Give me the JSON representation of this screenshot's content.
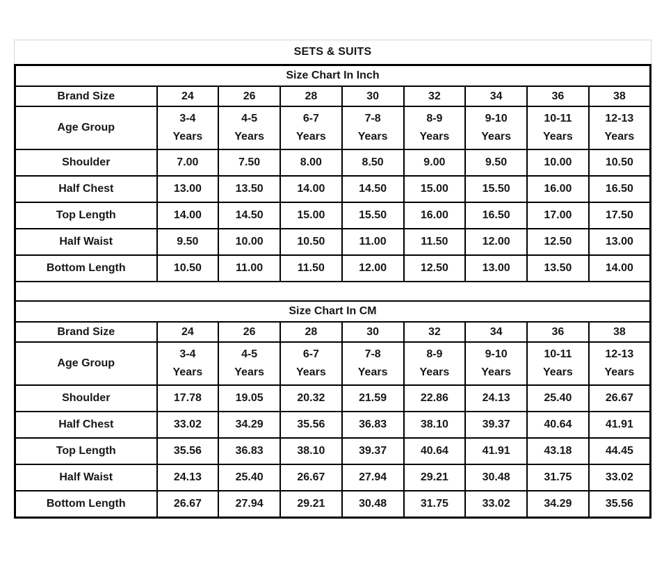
{
  "page": {
    "title": "SETS & SUITS",
    "background": "#ffffff",
    "text_color": "#171717",
    "table_border_color": "#000000",
    "title_border_color": "#d7d7d7"
  },
  "tables": [
    {
      "id": "inch",
      "header": "Size Chart In Inch",
      "brand_size_label": "Brand Size",
      "brand_sizes": [
        "24",
        "26",
        "28",
        "30",
        "32",
        "34",
        "36",
        "38"
      ],
      "age_group_label": "Age Group",
      "age_groups": [
        "3-4",
        "4-5",
        "6-7",
        "7-8",
        "8-9",
        "9-10",
        "10-11",
        "12-13"
      ],
      "age_unit": "Years",
      "rows": [
        {
          "label": "Shoulder",
          "values": [
            "7.00",
            "7.50",
            "8.00",
            "8.50",
            "9.00",
            "9.50",
            "10.00",
            "10.50"
          ]
        },
        {
          "label": "Half Chest",
          "values": [
            "13.00",
            "13.50",
            "14.00",
            "14.50",
            "15.00",
            "15.50",
            "16.00",
            "16.50"
          ]
        },
        {
          "label": "Top Length",
          "values": [
            "14.00",
            "14.50",
            "15.00",
            "15.50",
            "16.00",
            "16.50",
            "17.00",
            "17.50"
          ]
        },
        {
          "label": "Half Waist",
          "values": [
            "9.50",
            "10.00",
            "10.50",
            "11.00",
            "11.50",
            "12.00",
            "12.50",
            "13.00"
          ]
        },
        {
          "label": "Bottom Length",
          "values": [
            "10.50",
            "11.00",
            "11.50",
            "12.00",
            "12.50",
            "13.00",
            "13.50",
            "14.00"
          ]
        }
      ]
    },
    {
      "id": "cm",
      "header": "Size Chart In CM",
      "brand_size_label": "Brand Size",
      "brand_sizes": [
        "24",
        "26",
        "28",
        "30",
        "32",
        "34",
        "36",
        "38"
      ],
      "age_group_label": "Age Group",
      "age_groups": [
        "3-4",
        "4-5",
        "6-7",
        "7-8",
        "8-9",
        "9-10",
        "10-11",
        "12-13"
      ],
      "age_unit": "Years",
      "rows": [
        {
          "label": "Shoulder",
          "values": [
            "17.78",
            "19.05",
            "20.32",
            "21.59",
            "22.86",
            "24.13",
            "25.40",
            "26.67"
          ]
        },
        {
          "label": "Half Chest",
          "values": [
            "33.02",
            "34.29",
            "35.56",
            "36.83",
            "38.10",
            "39.37",
            "40.64",
            "41.91"
          ]
        },
        {
          "label": "Top Length",
          "values": [
            "35.56",
            "36.83",
            "38.10",
            "39.37",
            "40.64",
            "41.91",
            "43.18",
            "44.45"
          ]
        },
        {
          "label": "Half Waist",
          "values": [
            "24.13",
            "25.40",
            "26.67",
            "27.94",
            "29.21",
            "30.48",
            "31.75",
            "33.02"
          ]
        },
        {
          "label": "Bottom Length",
          "values": [
            "26.67",
            "27.94",
            "29.21",
            "30.48",
            "31.75",
            "33.02",
            "34.29",
            "35.56"
          ]
        }
      ]
    }
  ]
}
